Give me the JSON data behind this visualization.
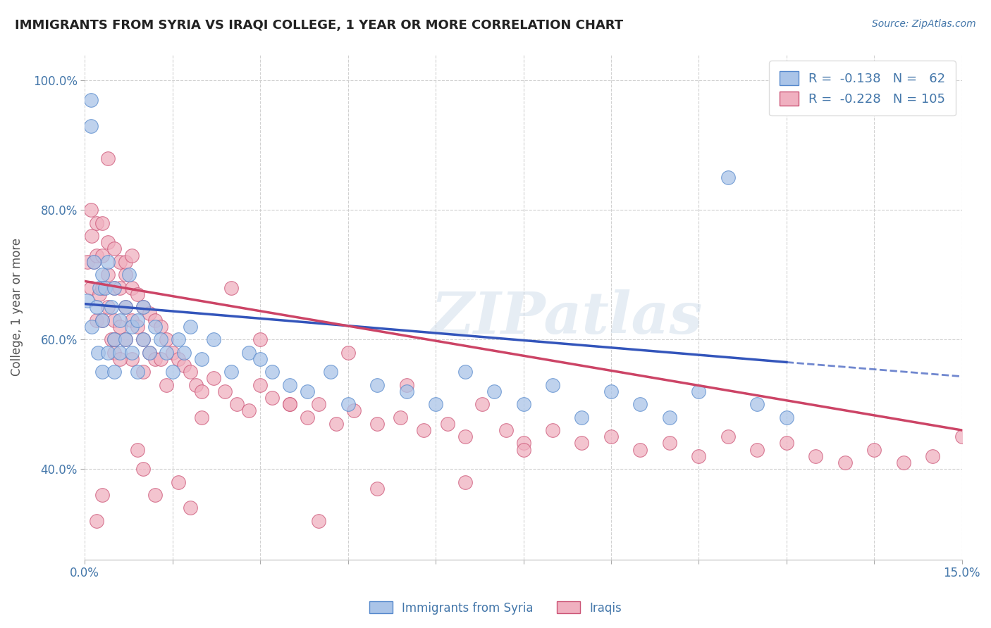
{
  "title": "IMMIGRANTS FROM SYRIA VS IRAQI COLLEGE, 1 YEAR OR MORE CORRELATION CHART",
  "source_text": "Source: ZipAtlas.com",
  "ylabel": "College, 1 year or more",
  "xlim": [
    0.0,
    0.15
  ],
  "ylim": [
    0.26,
    1.04
  ],
  "xtick_vals": [
    0.0,
    0.015,
    0.03,
    0.045,
    0.06,
    0.075,
    0.09,
    0.105,
    0.12,
    0.135,
    0.15
  ],
  "ytick_vals": [
    0.4,
    0.6,
    0.8,
    1.0
  ],
  "ytick_labels": [
    "40.0%",
    "60.0%",
    "80.0%",
    "100.0%"
  ],
  "series1_color": "#aac4e8",
  "series1_edge": "#5588cc",
  "series2_color": "#f0b0c0",
  "series2_edge": "#cc5577",
  "trend1_color": "#3355bb",
  "trend2_color": "#cc4466",
  "label1": "Immigrants from Syria",
  "label2": "Iraqis",
  "watermark": "ZIPatlas",
  "background_color": "#ffffff",
  "grid_color": "#cccccc",
  "title_color": "#222222",
  "axis_color": "#4477aa",
  "tick_color": "#aaaaaa",
  "syria_x": [
    0.0005,
    0.001,
    0.0012,
    0.0015,
    0.002,
    0.0022,
    0.0025,
    0.003,
    0.003,
    0.003,
    0.0035,
    0.004,
    0.004,
    0.0045,
    0.005,
    0.005,
    0.005,
    0.006,
    0.006,
    0.007,
    0.007,
    0.0075,
    0.008,
    0.008,
    0.009,
    0.009,
    0.01,
    0.01,
    0.011,
    0.012,
    0.013,
    0.014,
    0.015,
    0.016,
    0.017,
    0.018,
    0.02,
    0.022,
    0.025,
    0.028,
    0.03,
    0.032,
    0.035,
    0.038,
    0.042,
    0.045,
    0.05,
    0.055,
    0.06,
    0.065,
    0.07,
    0.075,
    0.08,
    0.085,
    0.09,
    0.095,
    0.1,
    0.105,
    0.11,
    0.115,
    0.12,
    0.001
  ],
  "syria_y": [
    0.66,
    0.97,
    0.62,
    0.72,
    0.65,
    0.58,
    0.68,
    0.7,
    0.63,
    0.55,
    0.68,
    0.72,
    0.58,
    0.65,
    0.6,
    0.55,
    0.68,
    0.63,
    0.58,
    0.65,
    0.6,
    0.7,
    0.62,
    0.58,
    0.63,
    0.55,
    0.6,
    0.65,
    0.58,
    0.62,
    0.6,
    0.58,
    0.55,
    0.6,
    0.58,
    0.62,
    0.57,
    0.6,
    0.55,
    0.58,
    0.57,
    0.55,
    0.53,
    0.52,
    0.55,
    0.5,
    0.53,
    0.52,
    0.5,
    0.55,
    0.52,
    0.5,
    0.53,
    0.48,
    0.52,
    0.5,
    0.48,
    0.52,
    0.85,
    0.5,
    0.48,
    0.93
  ],
  "iraq_x": [
    0.0005,
    0.001,
    0.001,
    0.0012,
    0.0015,
    0.002,
    0.002,
    0.002,
    0.0025,
    0.003,
    0.003,
    0.003,
    0.003,
    0.004,
    0.004,
    0.004,
    0.0045,
    0.005,
    0.005,
    0.005,
    0.005,
    0.006,
    0.006,
    0.006,
    0.007,
    0.007,
    0.007,
    0.008,
    0.008,
    0.008,
    0.009,
    0.009,
    0.01,
    0.01,
    0.01,
    0.011,
    0.011,
    0.012,
    0.012,
    0.013,
    0.013,
    0.014,
    0.015,
    0.016,
    0.017,
    0.018,
    0.019,
    0.02,
    0.022,
    0.024,
    0.026,
    0.028,
    0.03,
    0.032,
    0.035,
    0.038,
    0.04,
    0.043,
    0.046,
    0.05,
    0.054,
    0.058,
    0.062,
    0.065,
    0.068,
    0.072,
    0.075,
    0.08,
    0.085,
    0.09,
    0.095,
    0.1,
    0.105,
    0.11,
    0.115,
    0.12,
    0.125,
    0.13,
    0.135,
    0.14,
    0.145,
    0.15,
    0.002,
    0.003,
    0.004,
    0.005,
    0.006,
    0.007,
    0.008,
    0.009,
    0.01,
    0.012,
    0.014,
    0.016,
    0.018,
    0.02,
    0.025,
    0.03,
    0.035,
    0.04,
    0.045,
    0.05,
    0.055,
    0.065,
    0.075
  ],
  "iraq_y": [
    0.72,
    0.68,
    0.8,
    0.76,
    0.72,
    0.78,
    0.73,
    0.63,
    0.67,
    0.78,
    0.73,
    0.68,
    0.63,
    0.75,
    0.7,
    0.65,
    0.6,
    0.74,
    0.68,
    0.63,
    0.58,
    0.72,
    0.68,
    0.62,
    0.7,
    0.65,
    0.6,
    0.68,
    0.63,
    0.57,
    0.67,
    0.62,
    0.65,
    0.6,
    0.55,
    0.64,
    0.58,
    0.63,
    0.57,
    0.62,
    0.57,
    0.6,
    0.58,
    0.57,
    0.56,
    0.55,
    0.53,
    0.52,
    0.54,
    0.52,
    0.5,
    0.49,
    0.53,
    0.51,
    0.5,
    0.48,
    0.5,
    0.47,
    0.49,
    0.47,
    0.48,
    0.46,
    0.47,
    0.45,
    0.5,
    0.46,
    0.44,
    0.46,
    0.44,
    0.45,
    0.43,
    0.44,
    0.42,
    0.45,
    0.43,
    0.44,
    0.42,
    0.41,
    0.43,
    0.41,
    0.42,
    0.45,
    0.32,
    0.36,
    0.88,
    0.6,
    0.57,
    0.72,
    0.73,
    0.43,
    0.4,
    0.36,
    0.53,
    0.38,
    0.34,
    0.48,
    0.68,
    0.6,
    0.5,
    0.32,
    0.58,
    0.37,
    0.53,
    0.38,
    0.43
  ],
  "syria_trend_x0": 0.0,
  "syria_trend_y0": 0.655,
  "syria_trend_x1": 0.12,
  "syria_trend_y1": 0.565,
  "syria_trend_dash_x0": 0.12,
  "syria_trend_dash_y0": 0.565,
  "syria_trend_dash_x1": 0.15,
  "syria_trend_dash_y1": 0.543,
  "iraq_trend_x0": 0.0,
  "iraq_trend_y0": 0.69,
  "iraq_trend_x1": 0.15,
  "iraq_trend_y1": 0.46
}
